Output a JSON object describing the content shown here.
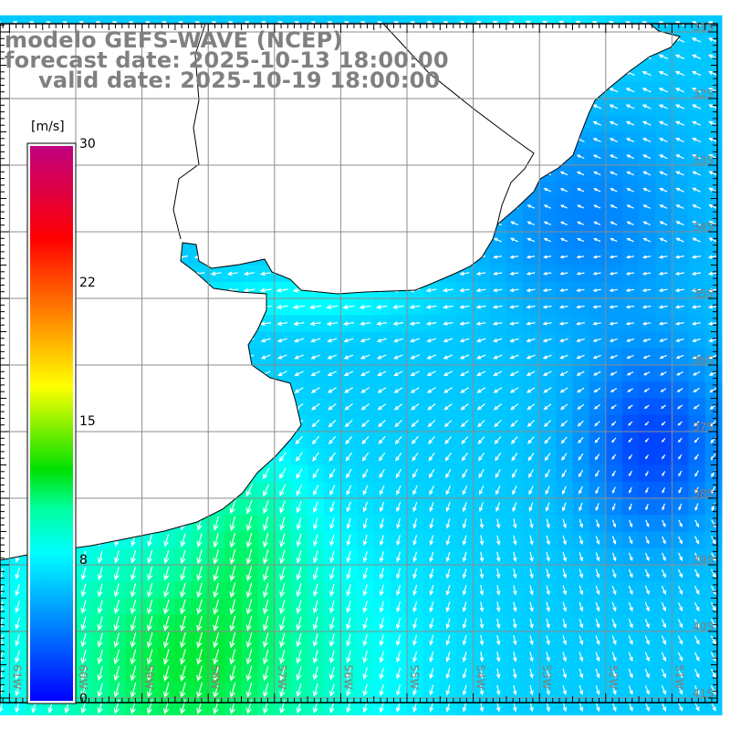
{
  "header": {
    "model": "modelo GEFS-WAVE (NCEP)",
    "forecast_date": "forecast date: 2025-10-13 18:00:00",
    "valid_date": "valid date: 2025-10-19 18:00:00"
  },
  "colorbar": {
    "unit": "[m/s]",
    "ticks": [
      "30",
      "22",
      "15",
      "8",
      "0"
    ],
    "stops": [
      {
        "value": 0,
        "color": "#0000ff"
      },
      {
        "value": 4,
        "color": "#0080ff"
      },
      {
        "value": 8,
        "color": "#00ffff"
      },
      {
        "value": 10.5,
        "color": "#00ff99"
      },
      {
        "value": 12.5,
        "color": "#00e000"
      },
      {
        "value": 17,
        "color": "#ffff00"
      },
      {
        "value": 20,
        "color": "#ffa000"
      },
      {
        "value": 25,
        "color": "#ff0000"
      },
      {
        "value": 30,
        "color": "#c00080"
      }
    ]
  },
  "axes": {
    "lon_labels": [
      "61W",
      "60W",
      "59W",
      "58W",
      "57W",
      "56W",
      "55W",
      "54W",
      "53W",
      "52W",
      "51W"
    ],
    "lat_labels": [
      "31S",
      "32S",
      "33S",
      "34S",
      "35S",
      "36S",
      "37S",
      "38S",
      "39S",
      "40S",
      "41S"
    ],
    "label_color": "#8c7c74",
    "grid_color": "#8c8c8c"
  }
}
